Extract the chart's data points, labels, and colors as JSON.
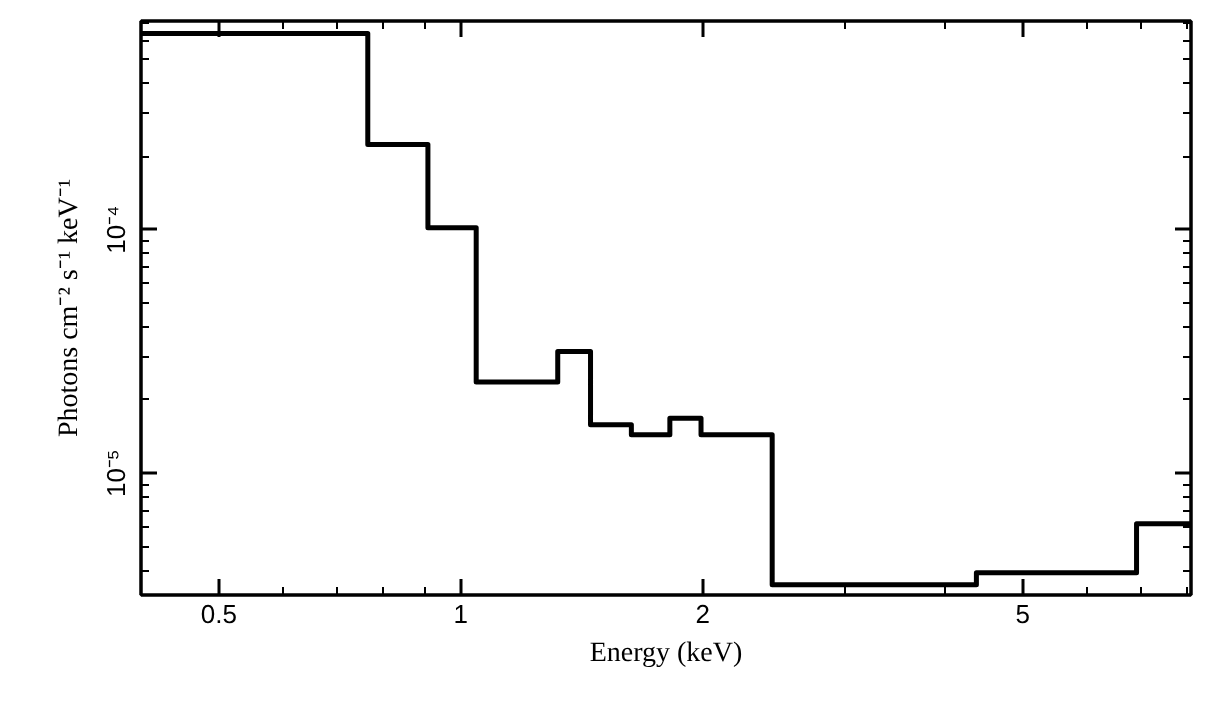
{
  "chart_data": {
    "type": "histogram",
    "xlabel": "Energy (keV)",
    "ylabel": "Photons cm⁻² s⁻¹ keV⁻¹",
    "bins": [
      0.4,
      0.766,
      0.91,
      1.045,
      1.32,
      1.45,
      1.63,
      1.82,
      1.99,
      2.44,
      4.38,
      6.93,
      8.1
    ],
    "values": [
      0.00064,
      0.000224,
      0.000102,
      2.37e-05,
      3.16e-05,
      1.58e-05,
      1.44e-05,
      1.68e-05,
      1.44e-05,
      3.48e-06,
      3.9e-06,
      6.2e-06
    ],
    "color": "#000000",
    "log": "xy",
    "grid": false,
    "xlim": [
      0.4,
      8.1
    ],
    "ylim": [
      3.16e-06,
      0.00072
    ],
    "xticks": [
      0.5,
      1,
      2,
      5
    ],
    "yticks": [
      {
        "value": 1e-05,
        "label": "10⁻⁵"
      },
      {
        "value": 0.0001,
        "label": "10⁻⁴"
      }
    ]
  }
}
